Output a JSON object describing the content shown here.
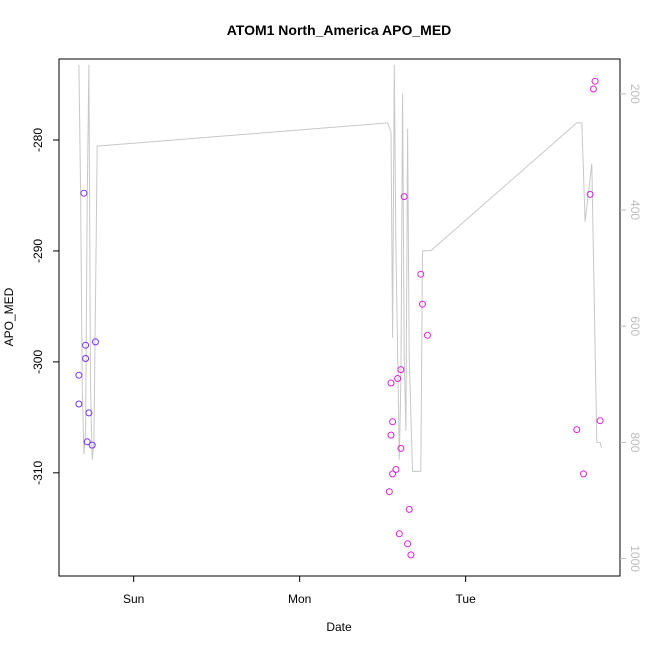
{
  "chart_data": {
    "type": "scatter",
    "title": "ATOM1 North_America APO_MED",
    "xlabel": "Date",
    "ylabel": "APO_MED",
    "xlim": [
      -0.45,
      2.93
    ],
    "ylim": [
      -319.3,
      -272.7
    ],
    "y2lim": [
      1030,
      140
    ],
    "x_ticks": [
      {
        "value": 0,
        "label": "Sun"
      },
      {
        "value": 1,
        "label": "Mon"
      },
      {
        "value": 2,
        "label": "Tue"
      }
    ],
    "y_ticks": [
      {
        "value": -280,
        "label": "-280"
      },
      {
        "value": -290,
        "label": "-290"
      },
      {
        "value": -300,
        "label": "-300"
      },
      {
        "value": -310,
        "label": "-310"
      }
    ],
    "y2_ticks": [
      {
        "value": 200,
        "label": "200"
      },
      {
        "value": 400,
        "label": "400"
      },
      {
        "value": 600,
        "label": "600"
      },
      {
        "value": 800,
        "label": "800"
      },
      {
        "value": 1000,
        "label": "1000"
      }
    ],
    "right_axis_color": "#bdbdbd",
    "line_color": "#c8c8c8",
    "series": [
      {
        "color": "#7733ff",
        "points": [
          {
            "x": -0.33,
            "y": -301.2
          },
          {
            "x": -0.33,
            "y": -303.8
          },
          {
            "x": -0.3,
            "y": -284.8
          },
          {
            "x": -0.29,
            "y": -298.5
          },
          {
            "x": -0.29,
            "y": -299.7
          },
          {
            "x": -0.28,
            "y": -307.2
          },
          {
            "x": -0.27,
            "y": -304.6
          },
          {
            "x": -0.25,
            "y": -307.5
          },
          {
            "x": -0.23,
            "y": -298.2
          }
        ]
      },
      {
        "color": "#dd22dd",
        "points": [
          {
            "x": 1.54,
            "y": -311.7
          },
          {
            "x": 1.55,
            "y": -301.9
          },
          {
            "x": 1.55,
            "y": -306.6
          },
          {
            "x": 1.56,
            "y": -305.4
          },
          {
            "x": 1.56,
            "y": -310.1
          },
          {
            "x": 1.58,
            "y": -309.7
          },
          {
            "x": 1.59,
            "y": -301.5
          },
          {
            "x": 1.6,
            "y": -315.5
          },
          {
            "x": 1.61,
            "y": -307.8
          },
          {
            "x": 1.61,
            "y": -300.7
          },
          {
            "x": 1.63,
            "y": -285.1
          },
          {
            "x": 1.65,
            "y": -316.4
          },
          {
            "x": 1.66,
            "y": -313.3
          },
          {
            "x": 1.67,
            "y": -317.4
          },
          {
            "x": 1.73,
            "y": -292.1
          },
          {
            "x": 1.74,
            "y": -294.8
          },
          {
            "x": 1.77,
            "y": -297.6
          },
          {
            "x": 2.67,
            "y": -306.1
          },
          {
            "x": 2.71,
            "y": -310.1
          },
          {
            "x": 2.75,
            "y": -284.9
          },
          {
            "x": 2.77,
            "y": -275.4
          },
          {
            "x": 2.78,
            "y": -274.7
          },
          {
            "x": 2.81,
            "y": -305.3
          }
        ]
      }
    ],
    "line": {
      "x": [
        -0.33,
        -0.32,
        -0.31,
        -0.3,
        -0.29,
        -0.28,
        -0.27,
        -0.26,
        -0.25,
        -0.24,
        -0.22,
        1.53,
        1.55,
        1.56,
        1.57,
        1.58,
        1.6,
        1.61,
        1.62,
        1.63,
        1.64,
        1.65,
        1.66,
        1.68,
        1.7,
        1.73,
        1.74,
        1.76,
        1.79,
        2.67,
        2.7,
        2.72,
        2.76,
        2.79,
        2.81,
        2.82
      ],
      "y2": [
        150,
        370,
        700,
        820,
        780,
        380,
        150,
        700,
        830,
        800,
        290,
        250,
        265,
        620,
        150,
        460,
        830,
        690,
        200,
        650,
        780,
        260,
        650,
        850,
        850,
        850,
        470,
        470,
        470,
        250,
        250,
        420,
        320,
        800,
        800,
        810
      ]
    }
  }
}
